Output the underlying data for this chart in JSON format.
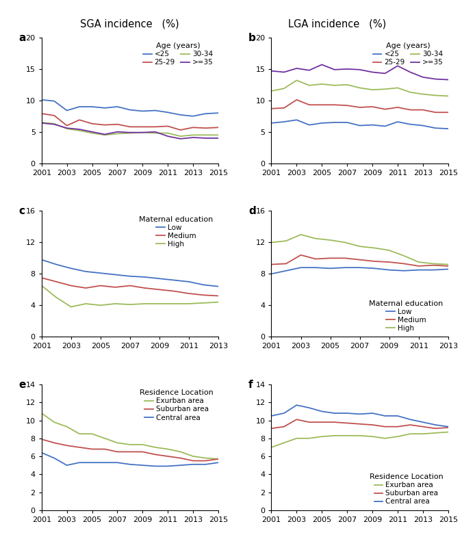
{
  "title_left": "SGA incidence   (%)",
  "title_right": "LGA incidence   (%)",
  "colors": {
    "lt25": "#4472C4",
    "age2529": "#C0504D",
    "age3034": "#9BBB59",
    "ge35": "#7030A0",
    "low": "#4472C4",
    "medium": "#C0504D",
    "high": "#9BBB59",
    "exurban": "#9BBB59",
    "suburban": "#C0504D",
    "central": "#4472C4"
  },
  "panel_a": {
    "label": "a",
    "years": [
      2001,
      2002,
      2003,
      2004,
      2005,
      2006,
      2007,
      2008,
      2009,
      2010,
      2011,
      2012,
      2013,
      2014,
      2015
    ],
    "lt25": [
      10.1,
      9.9,
      8.4,
      9.0,
      9.0,
      8.8,
      9.0,
      8.5,
      8.3,
      8.4,
      8.1,
      7.7,
      7.5,
      7.9,
      8.0
    ],
    "age2529": [
      7.9,
      7.6,
      6.0,
      6.9,
      6.3,
      6.1,
      6.2,
      5.8,
      5.8,
      5.8,
      5.9,
      5.3,
      5.7,
      5.6,
      5.7
    ],
    "age3034": [
      6.5,
      6.3,
      5.5,
      5.2,
      4.8,
      4.5,
      4.7,
      4.8,
      4.9,
      4.8,
      4.8,
      4.3,
      4.5,
      4.5,
      4.5
    ],
    "ge35": [
      6.4,
      6.2,
      5.6,
      5.4,
      5.0,
      4.6,
      5.0,
      4.9,
      4.9,
      5.0,
      4.3,
      3.9,
      4.1,
      4.0,
      4.0
    ],
    "ylim": [
      0,
      20
    ],
    "yticks": [
      0,
      5,
      10,
      15,
      20
    ],
    "xticks": [
      2001,
      2003,
      2005,
      2007,
      2009,
      2011,
      2013,
      2015
    ],
    "xlim": [
      2001,
      2015
    ]
  },
  "panel_b": {
    "label": "b",
    "years": [
      2001,
      2002,
      2003,
      2004,
      2005,
      2006,
      2007,
      2008,
      2009,
      2010,
      2011,
      2012,
      2013,
      2014,
      2015
    ],
    "lt25": [
      6.4,
      6.6,
      6.9,
      6.1,
      6.4,
      6.5,
      6.5,
      6.0,
      6.1,
      5.9,
      6.6,
      6.2,
      6.0,
      5.6,
      5.5
    ],
    "age2529": [
      8.7,
      8.8,
      10.1,
      9.3,
      9.3,
      9.3,
      9.2,
      8.9,
      9.0,
      8.6,
      8.9,
      8.5,
      8.5,
      8.1,
      8.1
    ],
    "age3034": [
      11.5,
      11.9,
      13.2,
      12.4,
      12.6,
      12.4,
      12.5,
      12.0,
      11.7,
      11.8,
      12.0,
      11.3,
      11.0,
      10.8,
      10.7
    ],
    "ge35": [
      14.7,
      14.5,
      15.1,
      14.8,
      15.7,
      14.9,
      15.0,
      14.9,
      14.5,
      14.3,
      15.5,
      14.5,
      13.7,
      13.4,
      13.3
    ],
    "ylim": [
      0,
      20
    ],
    "yticks": [
      0,
      5,
      10,
      15,
      20
    ],
    "xticks": [
      2001,
      2003,
      2005,
      2007,
      2009,
      2011,
      2013,
      2015
    ],
    "xlim": [
      2001,
      2015
    ]
  },
  "panel_c": {
    "label": "c",
    "years": [
      2001,
      2002,
      2003,
      2004,
      2005,
      2006,
      2007,
      2008,
      2009,
      2010,
      2011,
      2012,
      2013
    ],
    "low": [
      9.8,
      9.2,
      8.7,
      8.3,
      8.1,
      7.9,
      7.7,
      7.6,
      7.4,
      7.2,
      7.0,
      6.6,
      6.4
    ],
    "medium": [
      7.5,
      7.0,
      6.5,
      6.2,
      6.5,
      6.3,
      6.5,
      6.2,
      6.0,
      5.8,
      5.5,
      5.3,
      5.2
    ],
    "high": [
      6.5,
      5.0,
      3.8,
      4.2,
      4.0,
      4.2,
      4.1,
      4.2,
      4.2,
      4.2,
      4.2,
      4.3,
      4.4
    ],
    "ylim": [
      0,
      16
    ],
    "yticks": [
      0,
      4,
      8,
      12,
      16
    ],
    "xticks": [
      2001,
      2003,
      2005,
      2007,
      2009,
      2011,
      2013
    ],
    "xlim": [
      2001,
      2013
    ]
  },
  "panel_d": {
    "label": "d",
    "years": [
      2001,
      2002,
      2003,
      2004,
      2005,
      2006,
      2007,
      2008,
      2009,
      2010,
      2011,
      2012,
      2013
    ],
    "low": [
      8.0,
      8.4,
      8.8,
      8.8,
      8.7,
      8.8,
      8.8,
      8.7,
      8.5,
      8.4,
      8.5,
      8.5,
      8.6
    ],
    "medium": [
      9.2,
      9.3,
      10.4,
      9.9,
      10.0,
      10.0,
      9.8,
      9.6,
      9.5,
      9.3,
      9.0,
      9.1,
      9.0
    ],
    "high": [
      12.0,
      12.2,
      13.0,
      12.5,
      12.3,
      12.0,
      11.5,
      11.3,
      11.0,
      10.3,
      9.5,
      9.3,
      9.2
    ],
    "ylim": [
      0,
      16
    ],
    "yticks": [
      0,
      4,
      8,
      12,
      16
    ],
    "xticks": [
      2001,
      2003,
      2005,
      2007,
      2009,
      2011,
      2013
    ],
    "xlim": [
      2001,
      2013
    ]
  },
  "panel_e": {
    "label": "e",
    "years": [
      2001,
      2002,
      2003,
      2004,
      2005,
      2006,
      2007,
      2008,
      2009,
      2010,
      2011,
      2012,
      2013,
      2014,
      2015
    ],
    "exurban": [
      10.8,
      9.8,
      9.3,
      8.5,
      8.5,
      8.0,
      7.5,
      7.3,
      7.3,
      7.0,
      6.8,
      6.5,
      6.0,
      5.8,
      5.7
    ],
    "suburban": [
      7.9,
      7.5,
      7.2,
      7.0,
      6.8,
      6.8,
      6.5,
      6.5,
      6.5,
      6.2,
      6.0,
      5.8,
      5.5,
      5.5,
      5.7
    ],
    "central": [
      6.4,
      5.8,
      5.0,
      5.3,
      5.3,
      5.3,
      5.3,
      5.1,
      5.0,
      4.9,
      4.9,
      5.0,
      5.1,
      5.1,
      5.3
    ],
    "ylim": [
      0,
      14
    ],
    "yticks": [
      0,
      2,
      4,
      6,
      8,
      10,
      12,
      14
    ],
    "xticks": [
      2001,
      2003,
      2005,
      2007,
      2009,
      2011,
      2013,
      2015
    ],
    "xlim": [
      2001,
      2015
    ]
  },
  "panel_f": {
    "label": "f",
    "years": [
      2001,
      2002,
      2003,
      2004,
      2005,
      2006,
      2007,
      2008,
      2009,
      2010,
      2011,
      2012,
      2013,
      2014,
      2015
    ],
    "exurban": [
      7.0,
      7.5,
      8.0,
      8.0,
      8.2,
      8.3,
      8.3,
      8.3,
      8.2,
      8.0,
      8.2,
      8.5,
      8.5,
      8.6,
      8.7
    ],
    "suburban": [
      9.1,
      9.3,
      10.1,
      9.8,
      9.8,
      9.8,
      9.7,
      9.6,
      9.5,
      9.3,
      9.3,
      9.5,
      9.3,
      9.1,
      9.2
    ],
    "central": [
      10.5,
      10.8,
      11.7,
      11.4,
      11.0,
      10.8,
      10.8,
      10.7,
      10.8,
      10.5,
      10.5,
      10.1,
      9.8,
      9.5,
      9.3
    ],
    "ylim": [
      0,
      14
    ],
    "yticks": [
      0,
      2,
      4,
      6,
      8,
      10,
      12,
      14
    ],
    "xticks": [
      2001,
      2003,
      2005,
      2007,
      2009,
      2011,
      2013,
      2015
    ],
    "xlim": [
      2001,
      2015
    ]
  }
}
